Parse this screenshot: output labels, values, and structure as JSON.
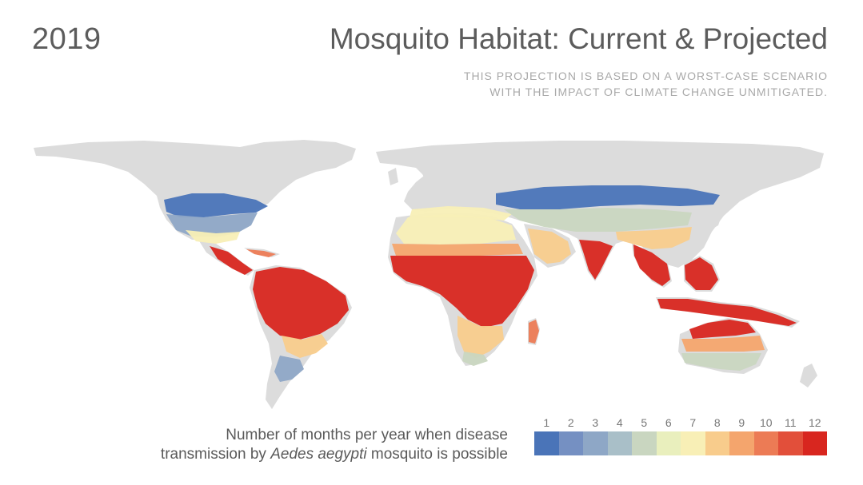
{
  "header": {
    "year": "2019",
    "title": "Mosquito Habitat: Current & Projected",
    "subtitle_line1": "THIS PROJECTION IS BASED ON A WORST-CASE SCENARIO",
    "subtitle_line2": "WITH THE IMPACT OF CLIMATE CHANGE UNMITIGATED."
  },
  "caption": {
    "line1": "Number of months per year when disease",
    "line2_prefix": "transmission by ",
    "line2_species": "Aedes aegypti",
    "line2_suffix": " mosquito is possible"
  },
  "legend": {
    "items": [
      {
        "label": "1",
        "color": "#4a74b8"
      },
      {
        "label": "2",
        "color": "#7590c2"
      },
      {
        "label": "3",
        "color": "#8ea7c6"
      },
      {
        "label": "4",
        "color": "#a9bfc8"
      },
      {
        "label": "5",
        "color": "#c9d6c0"
      },
      {
        "label": "6",
        "color": "#e9efbd"
      },
      {
        "label": "7",
        "color": "#f8efb6"
      },
      {
        "label": "8",
        "color": "#f8cc8c"
      },
      {
        "label": "9",
        "color": "#f4a56d"
      },
      {
        "label": "10",
        "color": "#ec7b55"
      },
      {
        "label": "11",
        "color": "#e24f3a"
      },
      {
        "label": "12",
        "color": "#d8261f"
      }
    ]
  },
  "map_colors": {
    "land": "#dcdcdc",
    "c1": "#4a74b8",
    "c3": "#8ea7c6",
    "c5": "#c9d6c0",
    "c7": "#f8efb6",
    "c8": "#f8cc8c",
    "c9": "#f4a56d",
    "c10": "#ec7b55",
    "c12": "#d8261f"
  }
}
